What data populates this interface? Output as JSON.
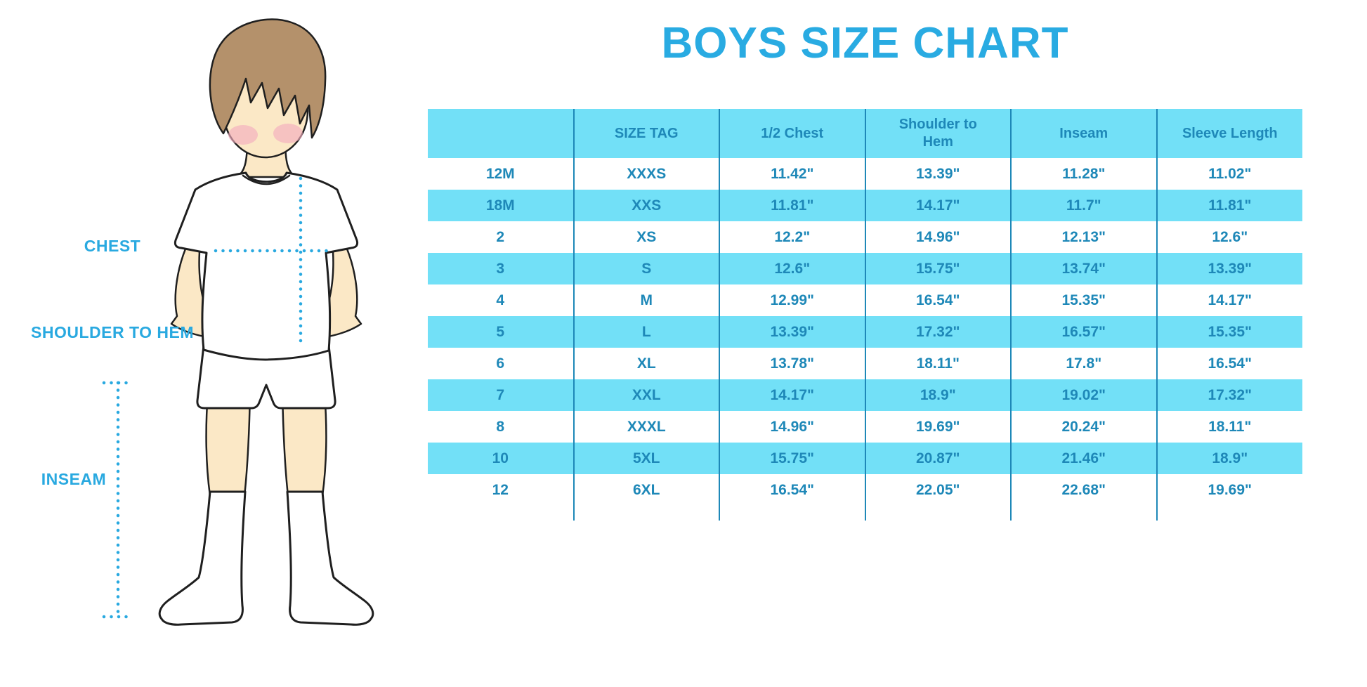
{
  "title": "BOYS SIZE CHART",
  "figure": {
    "labels": {
      "chest": "CHEST",
      "shoulder_to_hem": "SHOULDER TO HEM",
      "inseam": "INSEAM"
    }
  },
  "chart_data": {
    "type": "table",
    "title": "BOYS SIZE CHART",
    "columns": [
      "",
      "SIZE TAG",
      "1/2 Chest",
      "Shoulder to Hem",
      "Inseam",
      "Sleeve Length"
    ],
    "rows": [
      [
        "12M",
        "XXXS",
        "11.42\"",
        "13.39\"",
        "11.28\"",
        "11.02\""
      ],
      [
        "18M",
        "XXS",
        "11.81\"",
        "14.17\"",
        "11.7\"",
        "11.81\""
      ],
      [
        "2",
        "XS",
        "12.2\"",
        "14.96\"",
        "12.13\"",
        "12.6\""
      ],
      [
        "3",
        "S",
        "12.6\"",
        "15.75\"",
        "13.74\"",
        "13.39\""
      ],
      [
        "4",
        "M",
        "12.99\"",
        "16.54\"",
        "15.35\"",
        "14.17\""
      ],
      [
        "5",
        "L",
        "13.39\"",
        "17.32\"",
        "16.57\"",
        "15.35\""
      ],
      [
        "6",
        "XL",
        "13.78\"",
        "18.11\"",
        "17.8\"",
        "16.54\""
      ],
      [
        "7",
        "XXL",
        "14.17\"",
        "18.9\"",
        "19.02\"",
        "17.32\""
      ],
      [
        "8",
        "XXXL",
        "14.96\"",
        "19.69\"",
        "20.24\"",
        "18.11\""
      ],
      [
        "10",
        "5XL",
        "15.75\"",
        "20.87\"",
        "21.46\"",
        "18.9\""
      ],
      [
        "12",
        "6XL",
        "16.54\"",
        "22.05\"",
        "22.68\"",
        "19.69\""
      ]
    ],
    "notes": "Measurements in inches; alternating cyan/white row bands; no horizontal grid lines, thin teal column separators"
  },
  "colors": {
    "title-blue": "#29abe2",
    "band-cyan": "#72e0f7",
    "teal-text": "#1e88b8",
    "separator": "#1e88b8",
    "label-blue": "#29a9e0",
    "skin": "#fbe8c6",
    "hair": "#b4916b",
    "cheek": "#f3aebe",
    "outline": "#1f1f1f"
  }
}
